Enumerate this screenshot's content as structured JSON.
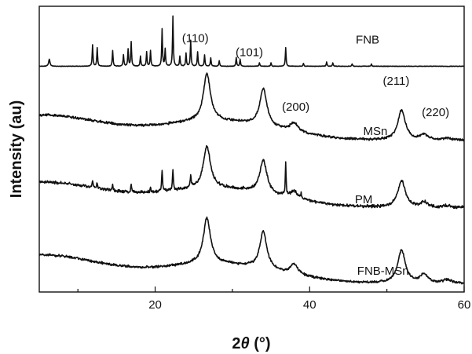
{
  "chart_data": {
    "type": "line",
    "xlabel": "2θ (°)",
    "xlabel_parts": {
      "prefix": "2",
      "symbol": "θ",
      "suffix": " (°)"
    },
    "ylabel": "Intensity (au)",
    "xlim": [
      5,
      60
    ],
    "xticks": [
      20,
      40,
      60
    ],
    "xtick_labels": [
      "20",
      "40",
      "60"
    ],
    "yticks_shown": false,
    "legend": "labels placed on the right, beside each trace",
    "series": [
      {
        "name": "FNB",
        "baseline": 0.79,
        "noise": 0.001,
        "broad": [],
        "peaks": [
          [
            6.3,
            0.025,
            0.1
          ],
          [
            11.9,
            0.075,
            0.06
          ],
          [
            12.5,
            0.065,
            0.06
          ],
          [
            14.5,
            0.055,
            0.06
          ],
          [
            15.9,
            0.04,
            0.06
          ],
          [
            16.5,
            0.06,
            0.06
          ],
          [
            16.9,
            0.085,
            0.06
          ],
          [
            18.1,
            0.035,
            0.06
          ],
          [
            18.9,
            0.05,
            0.06
          ],
          [
            19.4,
            0.055,
            0.06
          ],
          [
            20.9,
            0.13,
            0.06
          ],
          [
            21.3,
            0.06,
            0.06
          ],
          [
            22.3,
            0.175,
            0.06
          ],
          [
            23.2,
            0.035,
            0.06
          ],
          [
            24.0,
            0.045,
            0.06
          ],
          [
            24.6,
            0.09,
            0.06
          ],
          [
            25.5,
            0.05,
            0.06
          ],
          [
            26.4,
            0.04,
            0.06
          ],
          [
            27.2,
            0.03,
            0.06
          ],
          [
            28.3,
            0.02,
            0.06
          ],
          [
            30.5,
            0.03,
            0.06
          ],
          [
            31.0,
            0.025,
            0.06
          ],
          [
            33.5,
            0.012,
            0.06
          ],
          [
            35.0,
            0.012,
            0.06
          ],
          [
            36.9,
            0.065,
            0.06
          ],
          [
            39.2,
            0.01,
            0.06
          ],
          [
            42.2,
            0.015,
            0.06
          ],
          [
            43.0,
            0.012,
            0.06
          ],
          [
            45.5,
            0.008,
            0.06
          ],
          [
            48.0,
            0.008,
            0.06
          ]
        ]
      },
      {
        "name": "MSn",
        "baseline": 0.53,
        "noise": 0.005,
        "broad": [
          [
            5,
            0.09,
            9
          ],
          [
            26,
            0.05,
            6
          ],
          [
            34,
            0.03,
            6
          ]
        ],
        "peaks": [
          [
            26.7,
            0.165,
            0.55
          ],
          [
            34.0,
            0.13,
            0.55
          ],
          [
            38.0,
            0.03,
            0.6
          ],
          [
            51.9,
            0.105,
            0.6
          ],
          [
            54.8,
            0.02,
            0.6
          ],
          [
            57.8,
            0.008,
            0.6
          ]
        ]
      },
      {
        "name": "PM",
        "baseline": 0.295,
        "noise": 0.006,
        "broad": [
          [
            5,
            0.09,
            9
          ],
          [
            26,
            0.05,
            6
          ],
          [
            34,
            0.03,
            6
          ]
        ],
        "peaks": [
          [
            26.7,
            0.145,
            0.55
          ],
          [
            34.0,
            0.115,
            0.55
          ],
          [
            38.0,
            0.025,
            0.6
          ],
          [
            51.9,
            0.095,
            0.6
          ],
          [
            54.8,
            0.018,
            0.6
          ],
          [
            57.8,
            0.006,
            0.6
          ],
          [
            11.9,
            0.025,
            0.07
          ],
          [
            12.5,
            0.02,
            0.07
          ],
          [
            14.5,
            0.02,
            0.07
          ],
          [
            16.9,
            0.025,
            0.07
          ],
          [
            19.4,
            0.015,
            0.07
          ],
          [
            20.9,
            0.07,
            0.07
          ],
          [
            22.3,
            0.07,
            0.07
          ],
          [
            24.6,
            0.04,
            0.07
          ],
          [
            36.9,
            0.115,
            0.06
          ],
          [
            38.9,
            0.015,
            0.07
          ]
        ]
      },
      {
        "name": "FNB-MSn",
        "baseline": 0.03,
        "noise": 0.005,
        "broad": [
          [
            5,
            0.1,
            9
          ],
          [
            26,
            0.05,
            6
          ],
          [
            34,
            0.03,
            6
          ]
        ],
        "peaks": [
          [
            26.7,
            0.16,
            0.55
          ],
          [
            34.0,
            0.13,
            0.55
          ],
          [
            38.0,
            0.035,
            0.6
          ],
          [
            51.9,
            0.115,
            0.6
          ],
          [
            54.8,
            0.03,
            0.6
          ],
          [
            57.8,
            0.012,
            0.6
          ]
        ]
      }
    ],
    "series_label_x": [
      47.5,
      48.5,
      47.0,
      49.5
    ],
    "series_label_y": [
      0.87,
      0.55,
      0.31,
      0.06
    ],
    "annotations": [
      {
        "text": "(110)",
        "x": 25.2,
        "y": 0.875
      },
      {
        "text": "(101)",
        "x": 32.2,
        "y": 0.825
      },
      {
        "text": "(200)",
        "x": 38.2,
        "y": 0.635
      },
      {
        "text": "(211)",
        "x": 51.2,
        "y": 0.725
      },
      {
        "text": "(220)",
        "x": 56.3,
        "y": 0.615
      }
    ]
  }
}
